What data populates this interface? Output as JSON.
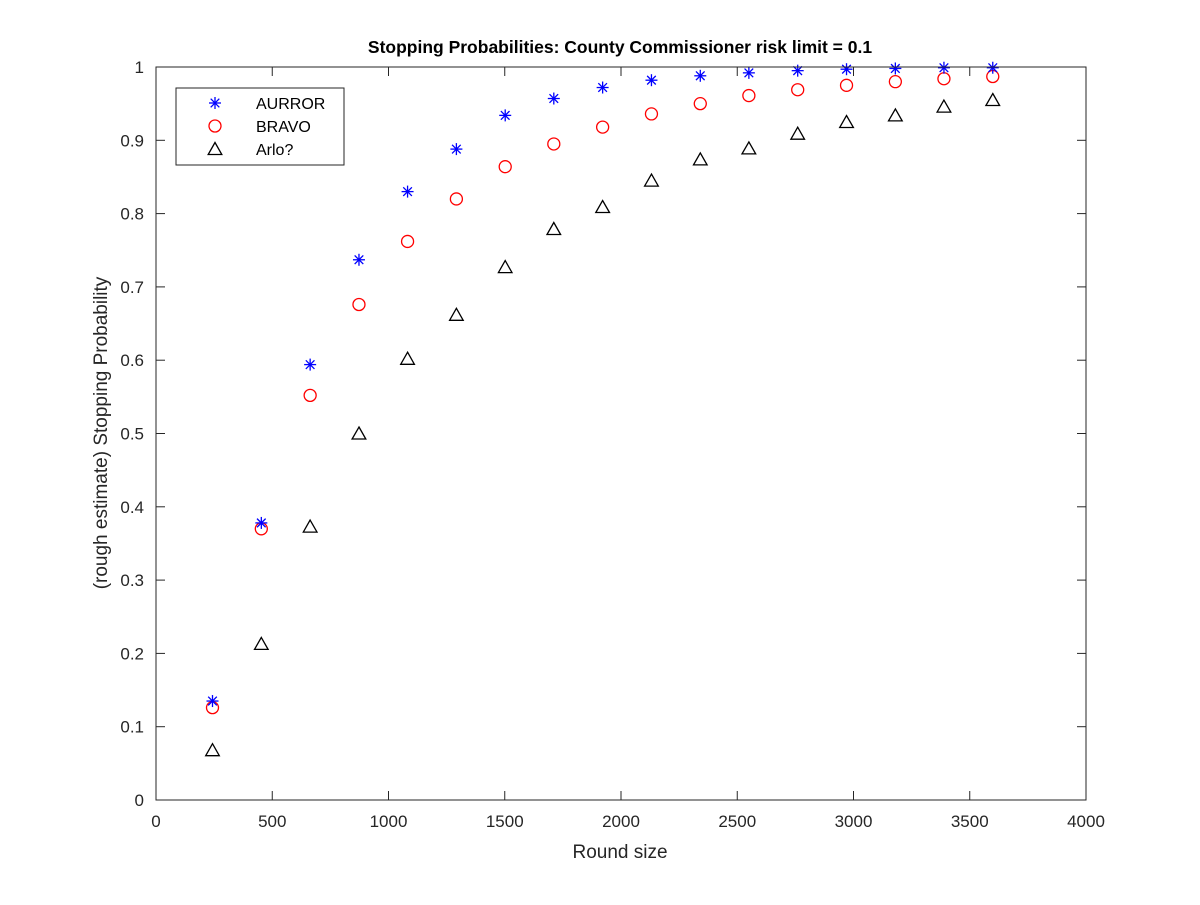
{
  "chart_data": {
    "type": "scatter",
    "title": "Stopping Probabilities: County Commissioner risk limit = 0.1",
    "xlabel": "Round size",
    "ylabel": "(rough estimate) Stopping Probability",
    "xlim": [
      0,
      4000
    ],
    "ylim": [
      0,
      1
    ],
    "xticks": [
      0,
      500,
      1000,
      1500,
      2000,
      2500,
      3000,
      3500,
      4000
    ],
    "yticks": [
      0,
      0.1,
      0.2,
      0.3,
      0.4,
      0.5,
      0.6,
      0.7,
      0.8,
      0.9,
      1
    ],
    "xtick_labels": [
      "0",
      "500",
      "1000",
      "1500",
      "2000",
      "2500",
      "3000",
      "3500",
      "4000"
    ],
    "ytick_labels": [
      "0",
      "0.1",
      "0.2",
      "0.3",
      "0.4",
      "0.5",
      "0.6",
      "0.7",
      "0.8",
      "0.9",
      "1"
    ],
    "grid": false,
    "legend_position": "top-left",
    "x": [
      243,
      453,
      663,
      873,
      1082,
      1292,
      1502,
      1711,
      1921,
      2131,
      2341,
      2550,
      2760,
      2970,
      3180,
      3389,
      3599
    ],
    "series": [
      {
        "name": "AURROR",
        "marker": "asterisk",
        "color": "#0000ff",
        "values": [
          0.135,
          0.378,
          0.594,
          0.737,
          0.83,
          0.888,
          0.934,
          0.957,
          0.972,
          0.982,
          0.988,
          0.992,
          0.995,
          0.997,
          0.998,
          0.999,
          0.999
        ]
      },
      {
        "name": "BRAVO",
        "marker": "circle",
        "color": "#ff0000",
        "values": [
          0.126,
          0.37,
          0.552,
          0.676,
          0.762,
          0.82,
          0.864,
          0.895,
          0.918,
          0.936,
          0.95,
          0.961,
          0.969,
          0.975,
          0.98,
          0.984,
          0.987
        ]
      },
      {
        "name": "Arlo?",
        "marker": "triangle",
        "color": "#000000",
        "values": [
          0.068,
          0.213,
          0.373,
          0.5,
          0.602,
          0.662,
          0.727,
          0.779,
          0.809,
          0.845,
          0.874,
          0.889,
          0.909,
          0.925,
          0.934,
          0.946,
          0.955
        ]
      }
    ]
  }
}
